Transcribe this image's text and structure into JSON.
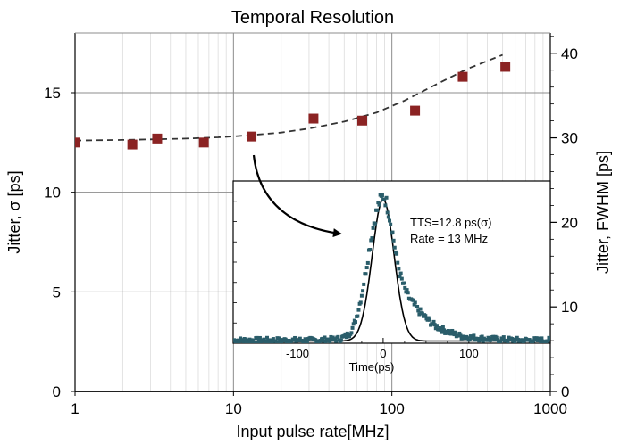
{
  "chart_data": [
    {
      "type": "scatter",
      "title": "Temporal Resolution",
      "xlabel": "Input pulse rate[MHz]",
      "ylabel": "Jitter, σ [ps]",
      "y2label": "Jitter, FWHM [ps]",
      "xscale": "log",
      "xlim": [
        1,
        1000
      ],
      "ylim": [
        0,
        18
      ],
      "y2lim": [
        0,
        42.4
      ],
      "x_ticks": [
        1,
        10,
        100,
        1000
      ],
      "x_tick_labels": [
        "1",
        "10",
        "100",
        "1000"
      ],
      "y_ticks": [
        0,
        5,
        10,
        15
      ],
      "y_tick_labels": [
        "0",
        "5",
        "10",
        "15"
      ],
      "y2_ticks": [
        0,
        10,
        20,
        30,
        40
      ],
      "y2_tick_labels": [
        "0",
        "10",
        "20",
        "30",
        "40"
      ],
      "grid": true,
      "series": [
        {
          "kind": "markers",
          "color": "#8b2323",
          "x": [
            1,
            2.3,
            3.3,
            6.5,
            13,
            32,
            65,
            140,
            280,
            520
          ],
          "y": [
            12.5,
            12.4,
            12.7,
            12.5,
            12.8,
            13.7,
            13.6,
            14.1,
            15.8,
            16.3
          ]
        },
        {
          "kind": "dashed-fit",
          "color": "#333333",
          "x": [
            1,
            2,
            3,
            5,
            8,
            12,
            20,
            30,
            50,
            80,
            120,
            200,
            300,
            500
          ],
          "y": [
            12.6,
            12.63,
            12.66,
            12.7,
            12.76,
            12.85,
            13.0,
            13.2,
            13.55,
            14.0,
            14.6,
            15.5,
            16.2,
            16.9
          ]
        }
      ]
    },
    {
      "type": "line",
      "inset": true,
      "xlabel": "Time(ps)",
      "xlim": [
        -175,
        195
      ],
      "ylim": [
        0,
        1.1
      ],
      "x_ticks": [
        -100,
        0,
        100
      ],
      "x_tick_labels": [
        "-100",
        "0",
        "100"
      ],
      "annotation": [
        "TTS=12.8 ps(σ)",
        "Rate = 13 MHz"
      ],
      "series": [
        {
          "kind": "gaussian-fit",
          "color": "#000000",
          "center": 0,
          "sigma": 12.8,
          "peak": 0.96
        },
        {
          "kind": "measured",
          "color": "#2a5d6a",
          "x": [
            -175,
            -160,
            -140,
            -120,
            -100,
            -80,
            -60,
            -50,
            -40,
            -35,
            -30,
            -25,
            -20,
            -15,
            -10,
            -5,
            0,
            3,
            6,
            10,
            15,
            20,
            25,
            30,
            35,
            40,
            50,
            60,
            70,
            80,
            90,
            100,
            120,
            140,
            160,
            180,
            195
          ],
          "y": [
            0.02,
            0.02,
            0.02,
            0.02,
            0.02,
            0.02,
            0.025,
            0.03,
            0.06,
            0.11,
            0.2,
            0.33,
            0.5,
            0.68,
            0.84,
            0.95,
            1.0,
            0.97,
            0.9,
            0.78,
            0.6,
            0.46,
            0.37,
            0.31,
            0.27,
            0.23,
            0.17,
            0.12,
            0.09,
            0.07,
            0.05,
            0.04,
            0.03,
            0.025,
            0.02,
            0.02,
            0.02
          ]
        }
      ]
    }
  ]
}
